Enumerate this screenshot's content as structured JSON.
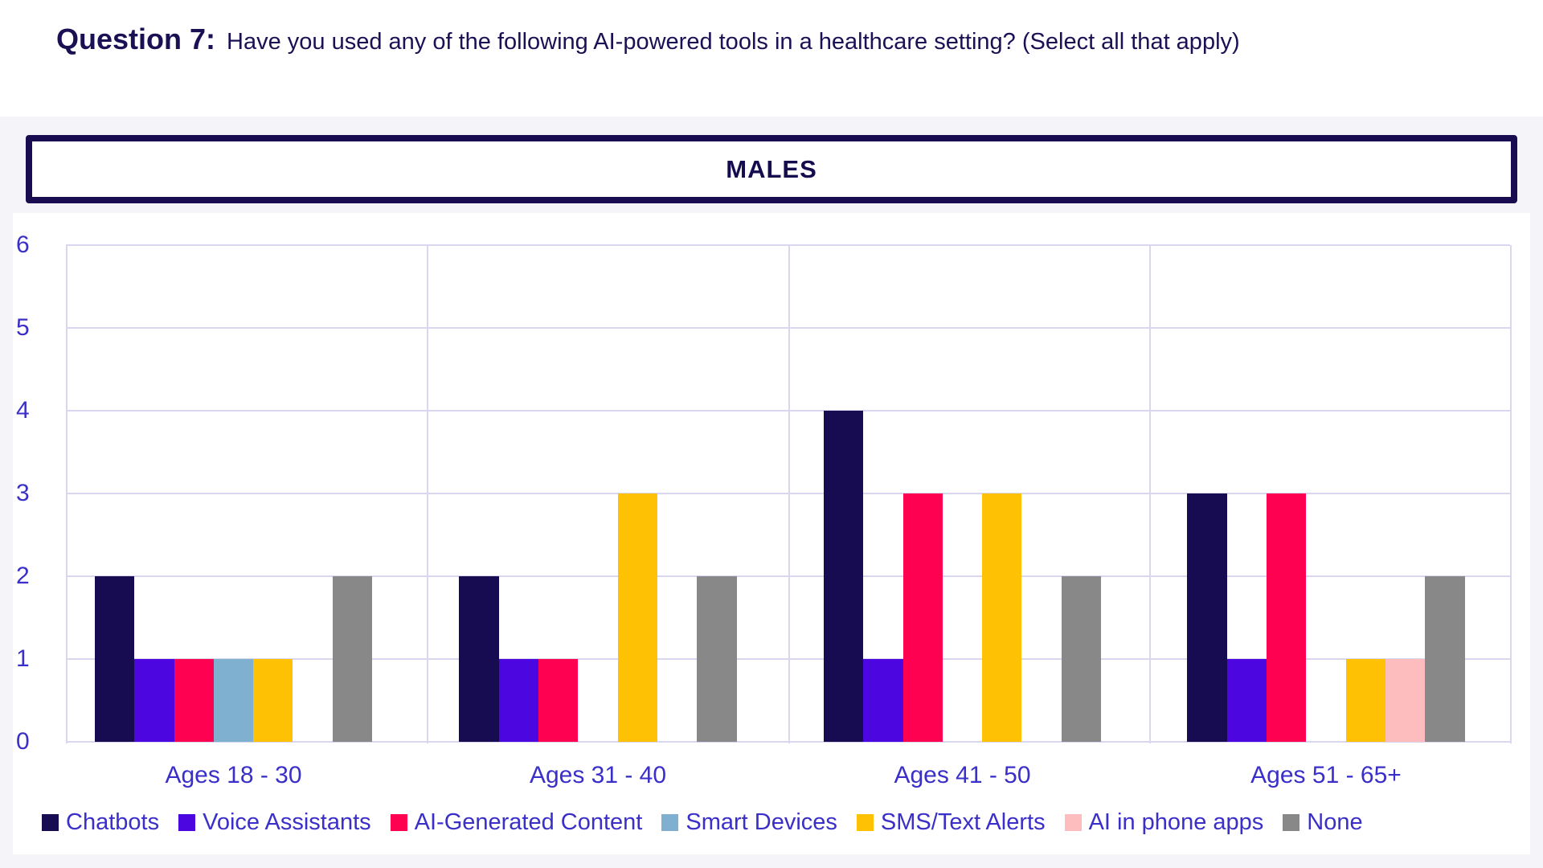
{
  "page": {
    "title_label": "Question 7:",
    "title_text": "Have you used any of the following AI-powered tools in a healthcare setting? (Select all that apply)",
    "group_header": "MALES"
  },
  "chart_data": {
    "type": "bar",
    "title": "MALES",
    "categories": [
      "Ages 18 - 30",
      "Ages 31 - 40",
      "Ages 41 - 50",
      "Ages 51 - 65+"
    ],
    "series": [
      {
        "name": "Chatbots",
        "color": "#170b52",
        "values": [
          2,
          2,
          4,
          3
        ]
      },
      {
        "name": "Voice Assistants",
        "color": "#4c06e0",
        "values": [
          1,
          1,
          1,
          1
        ]
      },
      {
        "name": "AI-Generated Content",
        "color": "#fe0150",
        "values": [
          1,
          1,
          3,
          3
        ]
      },
      {
        "name": "Smart Devices",
        "color": "#7fb0cf",
        "values": [
          1,
          0,
          0,
          0
        ]
      },
      {
        "name": "SMS/Text Alerts",
        "color": "#fec103",
        "values": [
          1,
          3,
          3,
          1
        ]
      },
      {
        "name": "AI in phone apps",
        "color": "#fdbcbe",
        "values": [
          0,
          0,
          0,
          1
        ]
      },
      {
        "name": "None",
        "color": "#898889",
        "values": [
          2,
          2,
          2,
          2
        ]
      }
    ],
    "y_axis": {
      "min": 0,
      "max": 6,
      "tick_step": 1,
      "ticks": [
        0,
        1,
        2,
        3,
        4,
        5,
        6
      ]
    },
    "grid": true,
    "legend_position": "bottom"
  },
  "colors": {
    "title_text": "#1a1155",
    "axis_text": "#3a2fc8",
    "gridline": "#d9d6ef",
    "panel_background": "#f5f4f9",
    "chart_background": "#ffffff",
    "header_border": "#1a0c51"
  }
}
